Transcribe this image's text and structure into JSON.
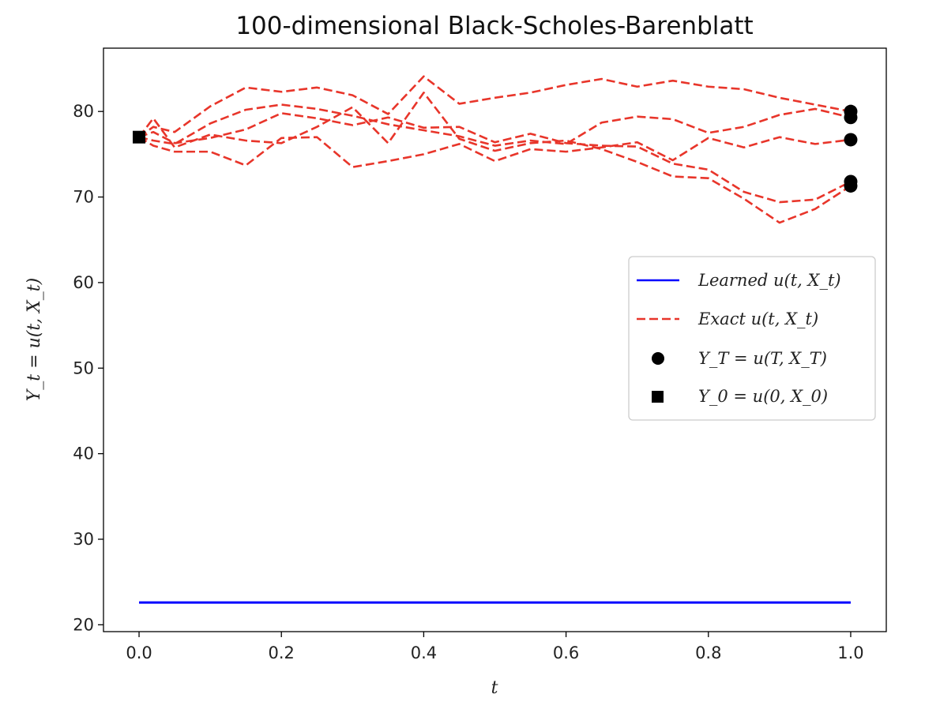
{
  "chart_data": {
    "type": "line",
    "title": "100-dimensional Black-Scholes-Barenblatt",
    "xlabel": "t",
    "ylabel": "Y_t = u(t, X_t)",
    "xlim": [
      -0.05,
      1.05
    ],
    "ylim": [
      19.2,
      87.4
    ],
    "xticks": [
      0.0,
      0.2,
      0.4,
      0.6,
      0.8,
      1.0
    ],
    "xtick_labels": [
      "0.0",
      "0.2",
      "0.4",
      "0.6",
      "0.8",
      "1.0"
    ],
    "yticks": [
      20,
      30,
      40,
      50,
      60,
      70,
      80
    ],
    "ytick_labels": [
      "20",
      "30",
      "40",
      "50",
      "60",
      "70",
      "80"
    ],
    "grid": false,
    "legend": {
      "position": "center-right",
      "entries": [
        {
          "label": "Learned u(t, X_t)",
          "marker": "line",
          "color": "#0000ff"
        },
        {
          "label": "Exact u(t, X_t)",
          "marker": "dashed-line",
          "color": "#e8352a"
        },
        {
          "label": "Y_T = u(T, X_T)",
          "marker": "circle",
          "color": "#000000"
        },
        {
          "label": "Y_0 = u(0, X_0)",
          "marker": "square",
          "color": "#000000"
        }
      ]
    },
    "colors": {
      "learned": "#0000ff",
      "exact": "#e8352a",
      "markers": "#000000"
    },
    "learned": [
      {
        "name": "Learned u(t, X_t)",
        "x": [
          0.0,
          1.0
        ],
        "y": [
          22.6,
          22.6
        ]
      }
    ],
    "exact": [
      {
        "name": "Exact u(t, X_t)",
        "x": [
          0.0,
          0.02,
          0.05,
          0.1,
          0.15,
          0.2,
          0.25,
          0.3,
          0.35,
          0.4,
          0.45,
          0.5,
          0.55,
          0.6,
          0.65,
          0.7,
          0.75,
          0.8,
          0.85,
          0.9,
          0.95,
          1.0
        ],
        "y": [
          77.0,
          78.2,
          77.6,
          80.6,
          82.8,
          82.3,
          82.8,
          81.9,
          79.7,
          84.1,
          80.9,
          81.6,
          82.2,
          83.1,
          83.8,
          82.9,
          83.6,
          82.9,
          82.6,
          81.6,
          80.8,
          80.0
        ]
      },
      {
        "name": "Exact u(t, X_t)",
        "x": [
          0.0,
          0.02,
          0.05,
          0.1,
          0.15,
          0.2,
          0.25,
          0.3,
          0.35,
          0.4,
          0.45,
          0.5,
          0.55,
          0.6,
          0.65,
          0.7,
          0.75,
          0.8,
          0.85,
          0.9,
          0.95,
          1.0
        ],
        "y": [
          77.0,
          76.6,
          76.2,
          78.6,
          80.2,
          80.8,
          80.3,
          79.5,
          78.5,
          77.8,
          77.1,
          76.0,
          76.6,
          76.2,
          78.7,
          79.4,
          79.1,
          77.5,
          78.2,
          79.6,
          80.3,
          79.3
        ]
      },
      {
        "name": "Exact u(t, X_t)",
        "x": [
          0.0,
          0.02,
          0.05,
          0.1,
          0.15,
          0.2,
          0.25,
          0.3,
          0.35,
          0.4,
          0.45,
          0.5,
          0.55,
          0.6,
          0.65,
          0.7,
          0.75,
          0.8,
          0.85,
          0.9,
          0.95,
          1.0
        ],
        "y": [
          77.0,
          76.0,
          75.3,
          75.3,
          73.7,
          76.9,
          77.0,
          73.5,
          74.2,
          75.0,
          76.2,
          74.2,
          75.6,
          75.3,
          75.8,
          76.4,
          74.3,
          76.9,
          75.8,
          77.0,
          76.2,
          76.7
        ]
      },
      {
        "name": "Exact u(t, X_t)",
        "x": [
          0.0,
          0.02,
          0.05,
          0.1,
          0.15,
          0.2,
          0.25,
          0.3,
          0.35,
          0.4,
          0.45,
          0.5,
          0.55,
          0.6,
          0.65,
          0.7,
          0.75,
          0.8,
          0.85,
          0.9,
          0.95,
          1.0
        ],
        "y": [
          77.0,
          77.6,
          76.3,
          76.9,
          77.9,
          79.8,
          79.2,
          78.4,
          79.3,
          78.1,
          78.2,
          76.4,
          77.4,
          76.3,
          76.0,
          75.9,
          73.9,
          73.2,
          70.6,
          69.4,
          69.7,
          71.8
        ]
      },
      {
        "name": "Exact u(t, X_t)",
        "x": [
          0.0,
          0.02,
          0.05,
          0.1,
          0.15,
          0.2,
          0.25,
          0.3,
          0.35,
          0.4,
          0.45,
          0.5,
          0.55,
          0.6,
          0.65,
          0.7,
          0.75,
          0.8,
          0.85,
          0.9,
          0.95,
          1.0
        ],
        "y": [
          77.0,
          79.2,
          75.8,
          77.3,
          76.6,
          76.3,
          78.2,
          80.5,
          76.3,
          82.2,
          76.8,
          75.4,
          76.3,
          76.6,
          75.6,
          74.1,
          72.4,
          72.2,
          69.8,
          67.0,
          68.6,
          71.3
        ]
      }
    ],
    "terminal_points": {
      "name": "Y_T = u(T, X_T)",
      "x": [
        1.0,
        1.0,
        1.0,
        1.0,
        1.0
      ],
      "y": [
        80.0,
        79.3,
        76.7,
        71.8,
        71.3
      ]
    },
    "initial_point": {
      "name": "Y_0 = u(0, X_0)",
      "x": [
        0.0
      ],
      "y": [
        77.0
      ]
    }
  }
}
